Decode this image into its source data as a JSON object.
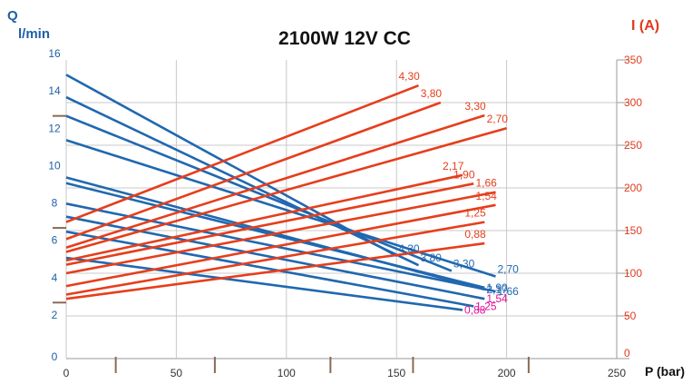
{
  "chart_data": {
    "type": "line",
    "title": "2100W 12V CC",
    "left_axis": {
      "symbol": "Q",
      "unit": "l/min",
      "range": [
        0,
        16
      ],
      "ticks": [
        "0",
        "2",
        "4",
        "6",
        "8",
        "10",
        "12",
        "14",
        "16"
      ],
      "color": "#1f5fa8"
    },
    "right_axis": {
      "label": "I (A)",
      "range": [
        0,
        350
      ],
      "ticks": [
        "0",
        "50",
        "100",
        "150",
        "200",
        "250",
        "300",
        "350"
      ],
      "color": "#e03a1e"
    },
    "x_axis": {
      "label": "P (bar)",
      "range": [
        0,
        250
      ],
      "ticks": [
        "0",
        "50",
        "100",
        "150",
        "200",
        "250"
      ]
    },
    "grid": true,
    "flow_series": [
      {
        "label": "4,30",
        "axis": "left",
        "x": [
          0,
          150
        ],
        "y": [
          15.2,
          5.5
        ]
      },
      {
        "label": "3,80",
        "axis": "left",
        "x": [
          0,
          160
        ],
        "y": [
          14.0,
          5.0
        ]
      },
      {
        "label": "3,30",
        "axis": "left",
        "x": [
          0,
          175
        ],
        "y": [
          13.0,
          4.7
        ]
      },
      {
        "label": "2,70",
        "axis": "left",
        "x": [
          0,
          195
        ],
        "y": [
          11.7,
          4.4
        ]
      },
      {
        "label": "2,17",
        "axis": "left",
        "x": [
          0,
          190
        ],
        "y": [
          9.7,
          3.7
        ]
      },
      {
        "label": "1,90",
        "axis": "left",
        "x": [
          0,
          190
        ],
        "y": [
          9.4,
          3.8
        ]
      },
      {
        "label": "1,66",
        "axis": "left",
        "x": [
          0,
          195
        ],
        "y": [
          8.3,
          3.6
        ]
      },
      {
        "label": "1,54",
        "axis": "left",
        "x": [
          0,
          190
        ],
        "y": [
          7.6,
          3.2
        ]
      },
      {
        "label": "1,25",
        "axis": "left",
        "x": [
          0,
          185
        ],
        "y": [
          6.8,
          2.8
        ]
      },
      {
        "label": "0,88",
        "axis": "left",
        "x": [
          0,
          180
        ],
        "y": [
          5.4,
          2.6
        ]
      }
    ],
    "current_series": [
      {
        "label": "4,30",
        "axis": "right",
        "x": [
          0,
          160
        ],
        "y": [
          160,
          320
        ]
      },
      {
        "label": "3,80",
        "axis": "right",
        "x": [
          0,
          170
        ],
        "y": [
          140,
          300
        ]
      },
      {
        "label": "3,30",
        "axis": "right",
        "x": [
          0,
          190
        ],
        "y": [
          130,
          285
        ]
      },
      {
        "label": "2,70",
        "axis": "right",
        "x": [
          0,
          200
        ],
        "y": [
          125,
          270
        ]
      },
      {
        "label": "2,17",
        "axis": "right",
        "x": [
          0,
          180
        ],
        "y": [
          115,
          215
        ]
      },
      {
        "label": "1,90",
        "axis": "right",
        "x": [
          0,
          185
        ],
        "y": [
          110,
          205
        ]
      },
      {
        "label": "1,66",
        "axis": "right",
        "x": [
          0,
          195
        ],
        "y": [
          100,
          195
        ]
      },
      {
        "label": "1,54",
        "axis": "right",
        "x": [
          0,
          195
        ],
        "y": [
          85,
          180
        ]
      },
      {
        "label": "1,25",
        "axis": "right",
        "x": [
          0,
          190
        ],
        "y": [
          75,
          160
        ]
      },
      {
        "label": "0,88",
        "axis": "right",
        "x": [
          0,
          190
        ],
        "y": [
          70,
          135
        ]
      }
    ],
    "colors": {
      "flow": "#2068b0",
      "current": "#e63e1c",
      "grid": "#c8c8c8",
      "tick_mark": "#8a6a55",
      "low_labels": "#e0129a"
    }
  }
}
